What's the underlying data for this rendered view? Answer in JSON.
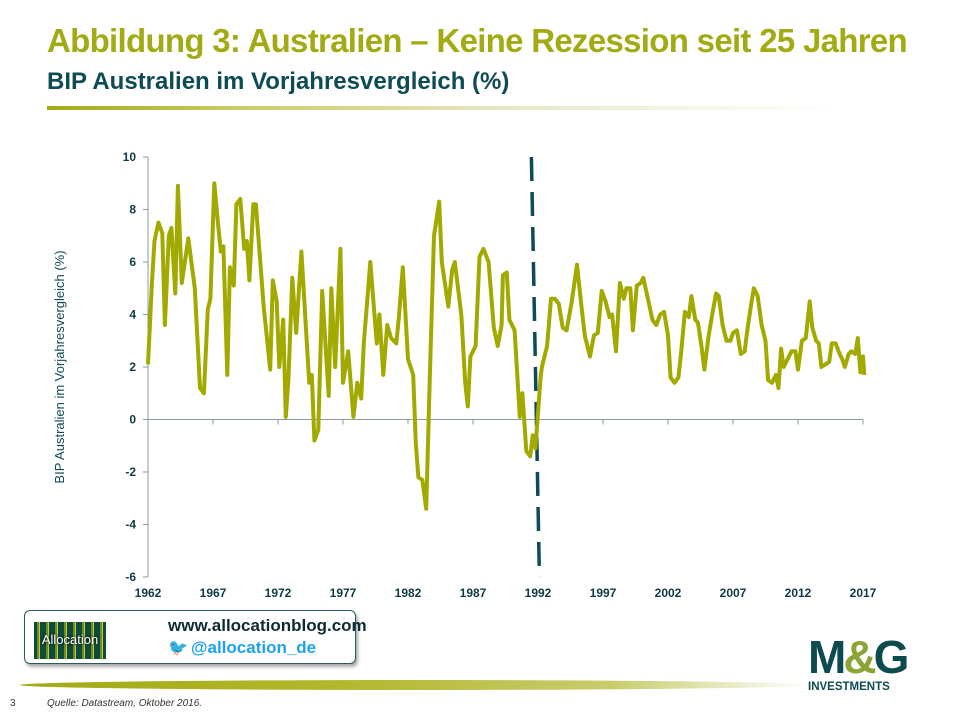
{
  "header": {
    "title": "Abbildung 3: Australien – Keine Rezession seit 25 Jahren",
    "subtitle": "BIP Australien im Vorjahresvergleich (%)"
  },
  "chart_data": {
    "type": "line",
    "title": "BIP Australien im Vorjahresvergleich (%)",
    "xlabel": "",
    "ylabel": "BIP Australien im Vorjahresvergleich  (%)",
    "xlim": [
      1962,
      2017
    ],
    "ylim": [
      -6,
      10
    ],
    "x_ticks": [
      1962,
      1967,
      1972,
      1977,
      1982,
      1987,
      1992,
      1997,
      2002,
      2007,
      2012,
      2017
    ],
    "y_ticks": [
      10,
      8,
      6,
      4,
      2,
      0,
      -2,
      -4,
      -6
    ],
    "grid": false,
    "legend": "none",
    "line_color": "#a2aa00",
    "annotation": {
      "type": "vertical-dashed-line",
      "x": 1991.8,
      "color": "#0d4b55"
    },
    "series": [
      {
        "name": "BIP Australien (% yoy)",
        "points": [
          [
            1962.0,
            2.1
          ],
          [
            1962.3,
            5.2
          ],
          [
            1962.5,
            6.8
          ],
          [
            1962.8,
            7.5
          ],
          [
            1963.1,
            7.1
          ],
          [
            1963.3,
            3.6
          ],
          [
            1963.6,
            7.0
          ],
          [
            1963.8,
            7.3
          ],
          [
            1964.1,
            4.8
          ],
          [
            1964.3,
            8.9
          ],
          [
            1964.6,
            5.2
          ],
          [
            1965.1,
            6.9
          ],
          [
            1965.6,
            5.0
          ],
          [
            1966.0,
            1.2
          ],
          [
            1966.3,
            1.0
          ],
          [
            1966.6,
            4.2
          ],
          [
            1966.8,
            4.6
          ],
          [
            1967.1,
            9.0
          ],
          [
            1967.4,
            7.4
          ],
          [
            1967.6,
            6.4
          ],
          [
            1967.8,
            6.6
          ],
          [
            1968.1,
            1.7
          ],
          [
            1968.3,
            5.8
          ],
          [
            1968.6,
            5.1
          ],
          [
            1968.8,
            8.2
          ],
          [
            1969.1,
            8.4
          ],
          [
            1969.4,
            6.5
          ],
          [
            1969.6,
            6.8
          ],
          [
            1969.8,
            5.3
          ],
          [
            1970.1,
            8.2
          ],
          [
            1970.3,
            8.2
          ],
          [
            1970.9,
            4.3
          ],
          [
            1971.4,
            1.9
          ],
          [
            1971.6,
            5.3
          ],
          [
            1971.9,
            4.5
          ],
          [
            1972.1,
            2.0
          ],
          [
            1972.4,
            3.8
          ],
          [
            1972.6,
            0.1
          ],
          [
            1972.8,
            1.5
          ],
          [
            1973.1,
            5.4
          ],
          [
            1973.4,
            3.3
          ],
          [
            1973.8,
            6.4
          ],
          [
            1974.4,
            1.4
          ],
          [
            1974.6,
            1.7
          ],
          [
            1974.8,
            -0.8
          ],
          [
            1975.1,
            -0.4
          ],
          [
            1975.4,
            4.9
          ],
          [
            1975.9,
            0.9
          ],
          [
            1976.1,
            5.0
          ],
          [
            1976.4,
            2.0
          ],
          [
            1976.8,
            6.5
          ],
          [
            1977.0,
            1.4
          ],
          [
            1977.4,
            2.6
          ],
          [
            1977.8,
            0.1
          ],
          [
            1978.1,
            1.4
          ],
          [
            1978.4,
            0.8
          ],
          [
            1978.6,
            2.9
          ],
          [
            1979.1,
            6.0
          ],
          [
            1979.5,
            3.5
          ],
          [
            1979.6,
            2.9
          ],
          [
            1979.8,
            4.0
          ],
          [
            1980.1,
            1.7
          ],
          [
            1980.4,
            3.6
          ],
          [
            1980.7,
            3.1
          ],
          [
            1981.1,
            2.9
          ],
          [
            1981.3,
            3.9
          ],
          [
            1981.6,
            5.8
          ],
          [
            1982.0,
            2.3
          ],
          [
            1982.4,
            1.7
          ],
          [
            1982.6,
            -0.9
          ],
          [
            1982.8,
            -2.2
          ],
          [
            1983.1,
            -2.3
          ],
          [
            1983.4,
            -3.4
          ],
          [
            1983.7,
            2.0
          ],
          [
            1984.0,
            7.0
          ],
          [
            1984.4,
            8.3
          ],
          [
            1984.6,
            6.0
          ],
          [
            1985.1,
            4.3
          ],
          [
            1985.4,
            5.7
          ],
          [
            1985.6,
            6.0
          ],
          [
            1986.1,
            4.0
          ],
          [
            1986.4,
            1.4
          ],
          [
            1986.6,
            0.5
          ],
          [
            1986.8,
            2.4
          ],
          [
            1987.2,
            2.8
          ],
          [
            1987.5,
            6.2
          ],
          [
            1987.8,
            6.5
          ],
          [
            1988.2,
            6.0
          ],
          [
            1988.6,
            3.5
          ],
          [
            1988.9,
            2.8
          ],
          [
            1989.2,
            3.6
          ],
          [
            1989.3,
            5.5
          ],
          [
            1989.6,
            5.6
          ],
          [
            1989.8,
            3.8
          ],
          [
            1990.2,
            3.4
          ],
          [
            1990.6,
            0.1
          ],
          [
            1990.8,
            1.0
          ],
          [
            1991.1,
            -1.2
          ],
          [
            1991.4,
            -1.4
          ],
          [
            1991.6,
            -0.6
          ],
          [
            1991.8,
            -1.1
          ],
          [
            1992.2,
            1.6
          ],
          [
            1992.3,
            2.0
          ],
          [
            1992.7,
            2.8
          ],
          [
            1993.0,
            4.6
          ],
          [
            1993.3,
            4.6
          ],
          [
            1993.6,
            4.4
          ],
          [
            1993.9,
            3.5
          ],
          [
            1994.2,
            3.4
          ],
          [
            1994.6,
            4.5
          ],
          [
            1995.0,
            5.9
          ],
          [
            1995.3,
            4.5
          ],
          [
            1995.6,
            3.2
          ],
          [
            1996.0,
            2.4
          ],
          [
            1996.3,
            3.2
          ],
          [
            1996.6,
            3.3
          ],
          [
            1996.9,
            4.9
          ],
          [
            1997.2,
            4.5
          ],
          [
            1997.5,
            3.9
          ],
          [
            1997.7,
            4.0
          ],
          [
            1998.0,
            2.6
          ],
          [
            1998.3,
            5.2
          ],
          [
            1998.6,
            4.6
          ],
          [
            1998.8,
            5.0
          ],
          [
            1999.1,
            5.0
          ],
          [
            1999.3,
            3.4
          ],
          [
            1999.6,
            5.1
          ],
          [
            1999.9,
            5.2
          ],
          [
            2000.1,
            5.4
          ],
          [
            2000.5,
            4.5
          ],
          [
            2000.8,
            3.8
          ],
          [
            2001.1,
            3.6
          ],
          [
            2001.4,
            4.0
          ],
          [
            2001.7,
            4.1
          ],
          [
            2002.0,
            3.2
          ],
          [
            2002.2,
            1.6
          ],
          [
            2002.5,
            1.4
          ],
          [
            2002.8,
            1.6
          ],
          [
            2003.0,
            2.5
          ],
          [
            2003.3,
            4.1
          ],
          [
            2003.6,
            3.9
          ],
          [
            2003.8,
            4.7
          ],
          [
            2004.1,
            3.8
          ],
          [
            2004.3,
            3.7
          ],
          [
            2004.6,
            2.7
          ],
          [
            2004.8,
            1.9
          ],
          [
            2005.1,
            3.1
          ],
          [
            2005.4,
            4.0
          ],
          [
            2005.7,
            4.8
          ],
          [
            2005.9,
            4.7
          ],
          [
            2006.2,
            3.6
          ],
          [
            2006.5,
            3.0
          ],
          [
            2006.8,
            3.0
          ],
          [
            2007.0,
            3.3
          ],
          [
            2007.3,
            3.4
          ],
          [
            2007.6,
            2.5
          ],
          [
            2007.9,
            2.6
          ],
          [
            2008.1,
            3.4
          ],
          [
            2008.4,
            4.4
          ],
          [
            2008.6,
            5.0
          ],
          [
            2008.9,
            4.7
          ],
          [
            2009.2,
            3.6
          ],
          [
            2009.5,
            3.0
          ],
          [
            2009.7,
            1.5
          ],
          [
            2010.0,
            1.4
          ],
          [
            2010.3,
            1.7
          ],
          [
            2010.5,
            1.2
          ],
          [
            2010.7,
            2.7
          ],
          [
            2010.9,
            2.0
          ],
          [
            2011.2,
            2.3
          ],
          [
            2011.5,
            2.6
          ],
          [
            2011.8,
            2.6
          ],
          [
            2012.0,
            1.9
          ],
          [
            2012.3,
            3.0
          ],
          [
            2012.6,
            3.1
          ],
          [
            2012.9,
            4.5
          ],
          [
            2013.1,
            3.5
          ],
          [
            2013.4,
            3.0
          ],
          [
            2013.6,
            2.9
          ],
          [
            2013.8,
            2.0
          ],
          [
            2014.1,
            2.1
          ],
          [
            2014.4,
            2.2
          ],
          [
            2014.6,
            2.9
          ],
          [
            2014.9,
            2.9
          ],
          [
            2015.2,
            2.5
          ],
          [
            2015.4,
            2.3
          ],
          [
            2015.6,
            2.0
          ],
          [
            2015.9,
            2.5
          ],
          [
            2016.1,
            2.6
          ],
          [
            2016.4,
            2.5
          ],
          [
            2016.6,
            3.1
          ],
          [
            2016.8,
            1.8
          ],
          [
            2017.0,
            2.4
          ],
          [
            2017.1,
            1.7
          ]
        ]
      }
    ]
  },
  "promo": {
    "logo_text": "Allocation",
    "url": "www.allocationblog.com",
    "twitter_icon": "twitter-bird-icon",
    "twitter": "@allocation_de"
  },
  "brand": {
    "logo_m": "M",
    "logo_amp": "&",
    "logo_g": "G",
    "logo_sub": "INVESTMENTS"
  },
  "footer": {
    "page_number": "3",
    "source": "Quelle: Datastream, Oktober 2016."
  }
}
